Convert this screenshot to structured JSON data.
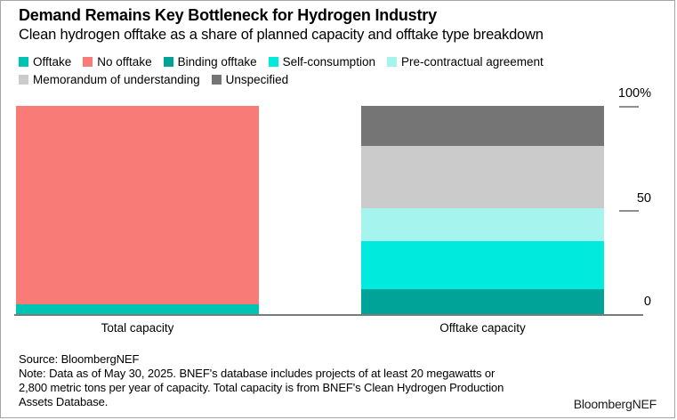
{
  "header": {
    "title": "Demand Remains Key Bottleneck for Hydrogen Industry",
    "subtitle": "Clean hydrogen offtake as a share of planned capacity and offtake type breakdown"
  },
  "chart_data": {
    "type": "bar",
    "subtype": "stacked",
    "unit": "percent of planned capacity",
    "categories": [
      "Total capacity",
      "Offtake capacity"
    ],
    "series": [
      {
        "name": "Offtake",
        "color": "#00C4B3",
        "values": [
          5,
          0
        ]
      },
      {
        "name": "No offtake",
        "color": "#F87B78",
        "values": [
          95,
          0
        ]
      },
      {
        "name": "Binding offtake",
        "color": "#00A398",
        "values": [
          0,
          12.5
        ]
      },
      {
        "name": "Self-consumption",
        "color": "#00EBDE",
        "values": [
          0,
          23
        ]
      },
      {
        "name": "Pre-contractual agreement",
        "color": "#A6F4EE",
        "values": [
          0,
          15.5
        ]
      },
      {
        "name": "Memorandum of understanding",
        "color": "#CBCBCB",
        "values": [
          0,
          30
        ]
      },
      {
        "name": "Unspecified",
        "color": "#757575",
        "values": [
          0,
          19
        ]
      }
    ],
    "ylim": [
      0,
      100
    ],
    "yticks": [
      "100%",
      "50",
      "0"
    ],
    "legend_position": "top",
    "grid": false,
    "axis_color": "#7b7b7b"
  },
  "footer": {
    "source": "Source: BloombergNEF",
    "note_lines": [
      "Note: Data as of May 30, 2025. BNEF's database includes projects of at least 20 megawatts or",
      "2,800 metric tons per year of capacity. Total capacity is from BNEF's Clean Hydrogen Production",
      "Assets Database."
    ],
    "brand": "BloombergNEF"
  }
}
